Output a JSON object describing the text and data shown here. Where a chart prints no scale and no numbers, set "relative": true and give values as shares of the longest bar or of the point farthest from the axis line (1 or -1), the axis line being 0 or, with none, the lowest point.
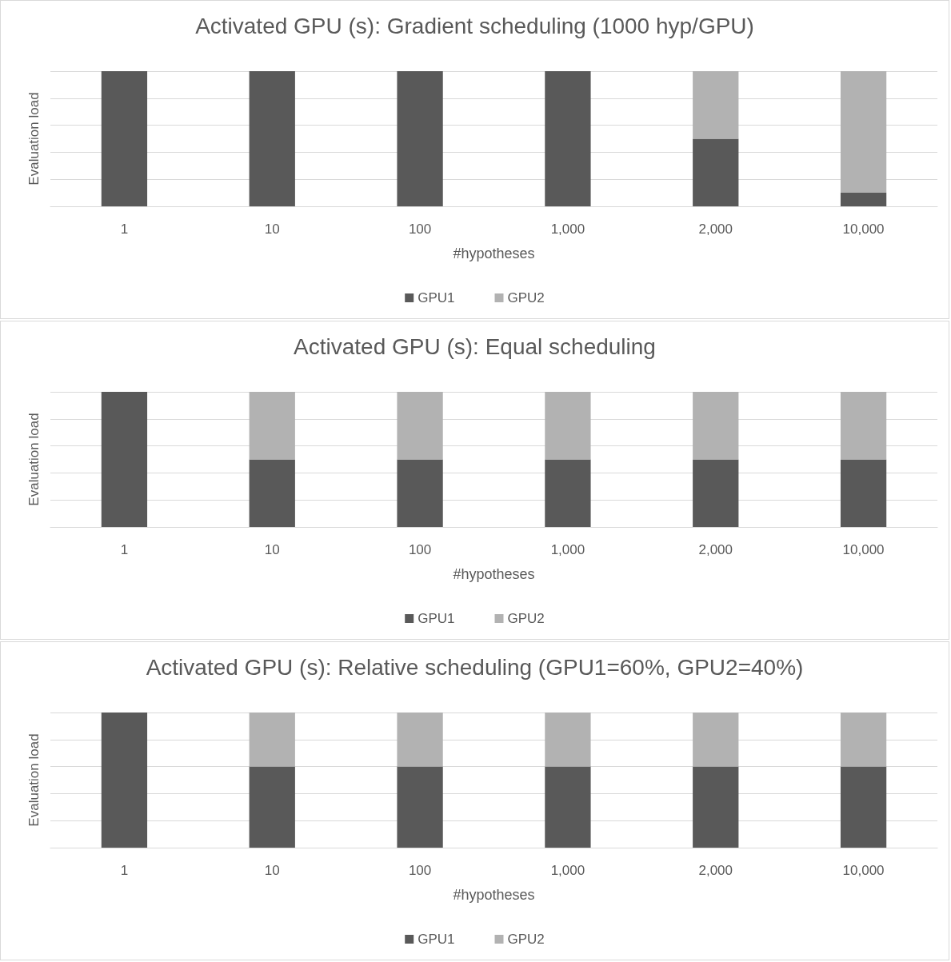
{
  "chart_data": [
    {
      "type": "bar",
      "title": "Activated GPU (s): Gradient scheduling (1000 hyp/GPU)",
      "xlabel": "#hypotheses",
      "ylabel": "Evaluation load",
      "categories": [
        "1",
        "10",
        "100",
        "1,000",
        "2,000",
        "10,000"
      ],
      "stacked": true,
      "relative": true,
      "grid": "y",
      "legend": "bottom",
      "series": [
        {
          "name": "GPU1",
          "color": "#595959",
          "values": [
            1,
            1,
            1,
            1,
            0.5,
            0.1
          ]
        },
        {
          "name": "GPU2",
          "color": "#b2b2b2",
          "values": [
            0,
            0,
            0,
            0,
            0.5,
            0.9
          ]
        }
      ]
    },
    {
      "type": "bar",
      "title": "Activated GPU (s): Equal scheduling",
      "xlabel": "#hypotheses",
      "ylabel": "Evaluation load",
      "categories": [
        "1",
        "10",
        "100",
        "1,000",
        "2,000",
        "10,000"
      ],
      "stacked": true,
      "relative": true,
      "grid": "y",
      "legend": "bottom",
      "series": [
        {
          "name": "GPU1",
          "color": "#595959",
          "values": [
            1,
            0.5,
            0.5,
            0.5,
            0.5,
            0.5
          ]
        },
        {
          "name": "GPU2",
          "color": "#b2b2b2",
          "values": [
            0,
            0.5,
            0.5,
            0.5,
            0.5,
            0.5
          ]
        }
      ]
    },
    {
      "type": "bar",
      "title": "Activated GPU (s): Relative scheduling (GPU1=60%, GPU2=40%)",
      "xlabel": "#hypotheses",
      "ylabel": "Evaluation load",
      "categories": [
        "1",
        "10",
        "100",
        "1,000",
        "2,000",
        "10,000"
      ],
      "stacked": true,
      "relative": true,
      "grid": "y",
      "legend": "bottom",
      "series": [
        {
          "name": "GPU1",
          "color": "#595959",
          "values": [
            1,
            0.6,
            0.6,
            0.6,
            0.6,
            0.6
          ]
        },
        {
          "name": "GPU2",
          "color": "#b2b2b2",
          "values": [
            0,
            0.4,
            0.4,
            0.4,
            0.4,
            0.4
          ]
        }
      ]
    }
  ]
}
